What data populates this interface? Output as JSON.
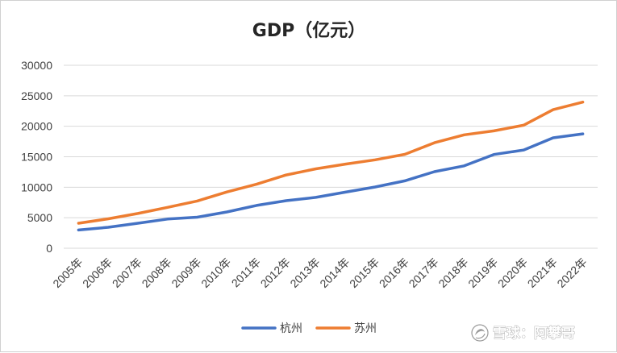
{
  "chart_data": {
    "type": "line",
    "title": "GDP（亿元）",
    "xlabel": "",
    "ylabel": "",
    "ylim": [
      0,
      30000
    ],
    "yticks": [
      0,
      5000,
      10000,
      15000,
      20000,
      25000,
      30000
    ],
    "grid": true,
    "legend_position": "bottom",
    "categories": [
      "2005年",
      "2006年",
      "2007年",
      "2008年",
      "2009年",
      "2010年",
      "2011年",
      "2012年",
      "2013年",
      "2014年",
      "2015年",
      "2016年",
      "2017年",
      "2018年",
      "2019年",
      "2020年",
      "2021年",
      "2022年"
    ],
    "series": [
      {
        "name": "杭州",
        "color": "#4472c4",
        "values": [
          2990,
          3440,
          4100,
          4790,
          5090,
          5950,
          7020,
          7800,
          8340,
          9200,
          10050,
          11050,
          12560,
          13500,
          15370,
          16100,
          18110,
          18750
        ]
      },
      {
        "name": "苏州",
        "color": "#ed7d31",
        "values": [
          4100,
          4820,
          5700,
          6700,
          7740,
          9230,
          10500,
          12010,
          13020,
          13800,
          14500,
          15400,
          17300,
          18600,
          19240,
          20170,
          22720,
          23960
        ]
      }
    ]
  },
  "watermark": {
    "text": "雪球：阿攀哥",
    "icon": "snowball-logo-icon"
  }
}
